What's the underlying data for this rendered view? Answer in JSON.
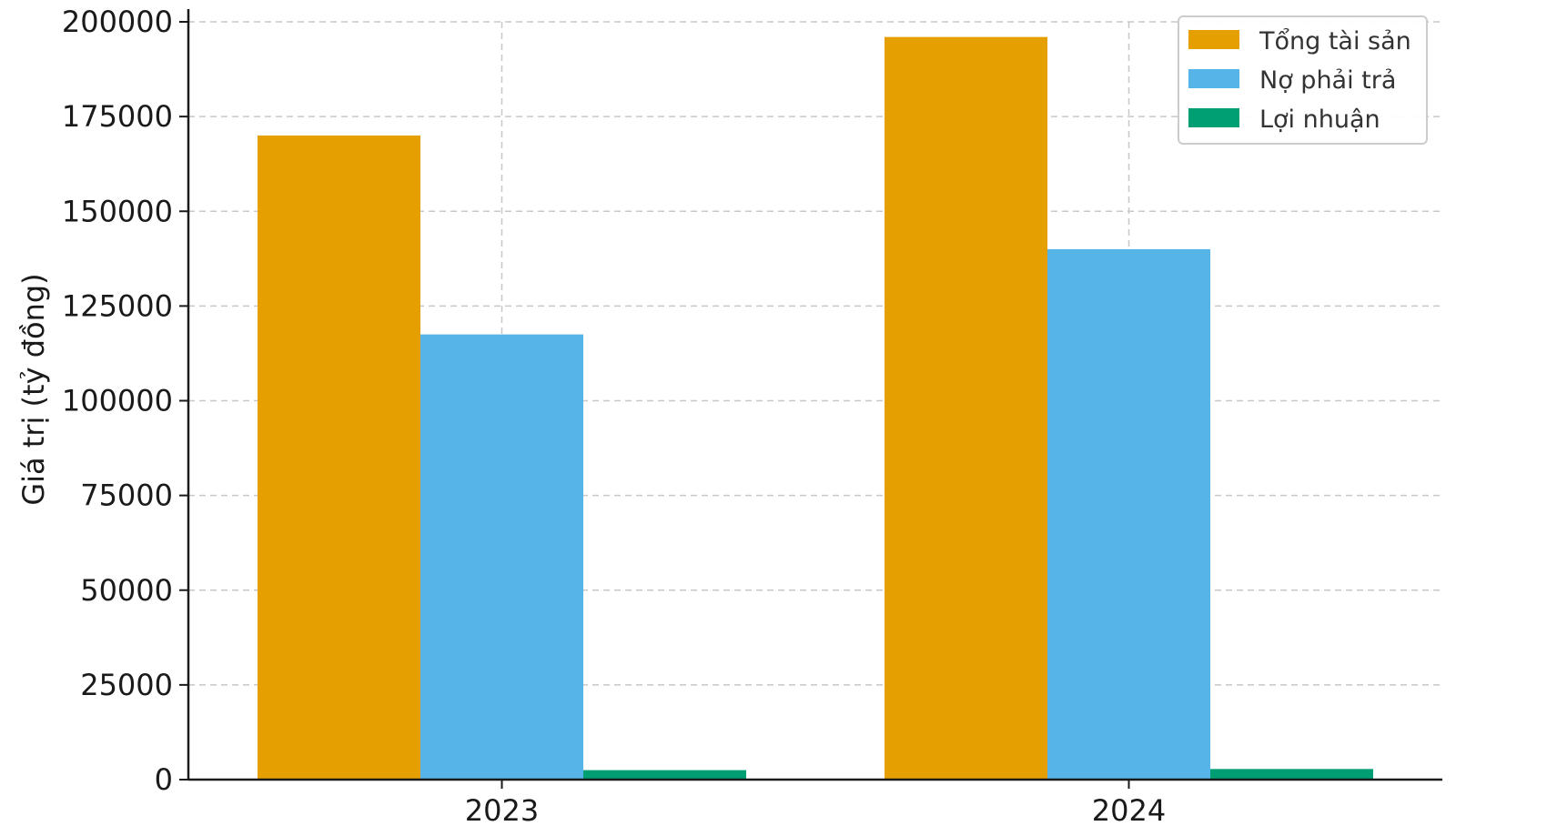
{
  "chart_data": {
    "type": "bar",
    "title": "",
    "xlabel": "",
    "ylabel": "Giá trị (tỷ đồng)",
    "categories": [
      "2023",
      "2024"
    ],
    "series": [
      {
        "name": "Tổng tài sản",
        "values": [
          170000,
          196000
        ],
        "color": "#E69F00"
      },
      {
        "name": "Nợ phải trả",
        "values": [
          117500,
          140000
        ],
        "color": "#56B4E9"
      },
      {
        "name": "Lợi nhuận",
        "values": [
          2500,
          2800
        ],
        "color": "#009E73"
      }
    ],
    "ylim": [
      0,
      200000
    ],
    "yticks": [
      "0",
      "25000",
      "50000",
      "75000",
      "100000",
      "125000",
      "150000",
      "175000",
      "200000"
    ],
    "grid": true,
    "grid_style": "dashed",
    "legend_position": "top-right"
  }
}
